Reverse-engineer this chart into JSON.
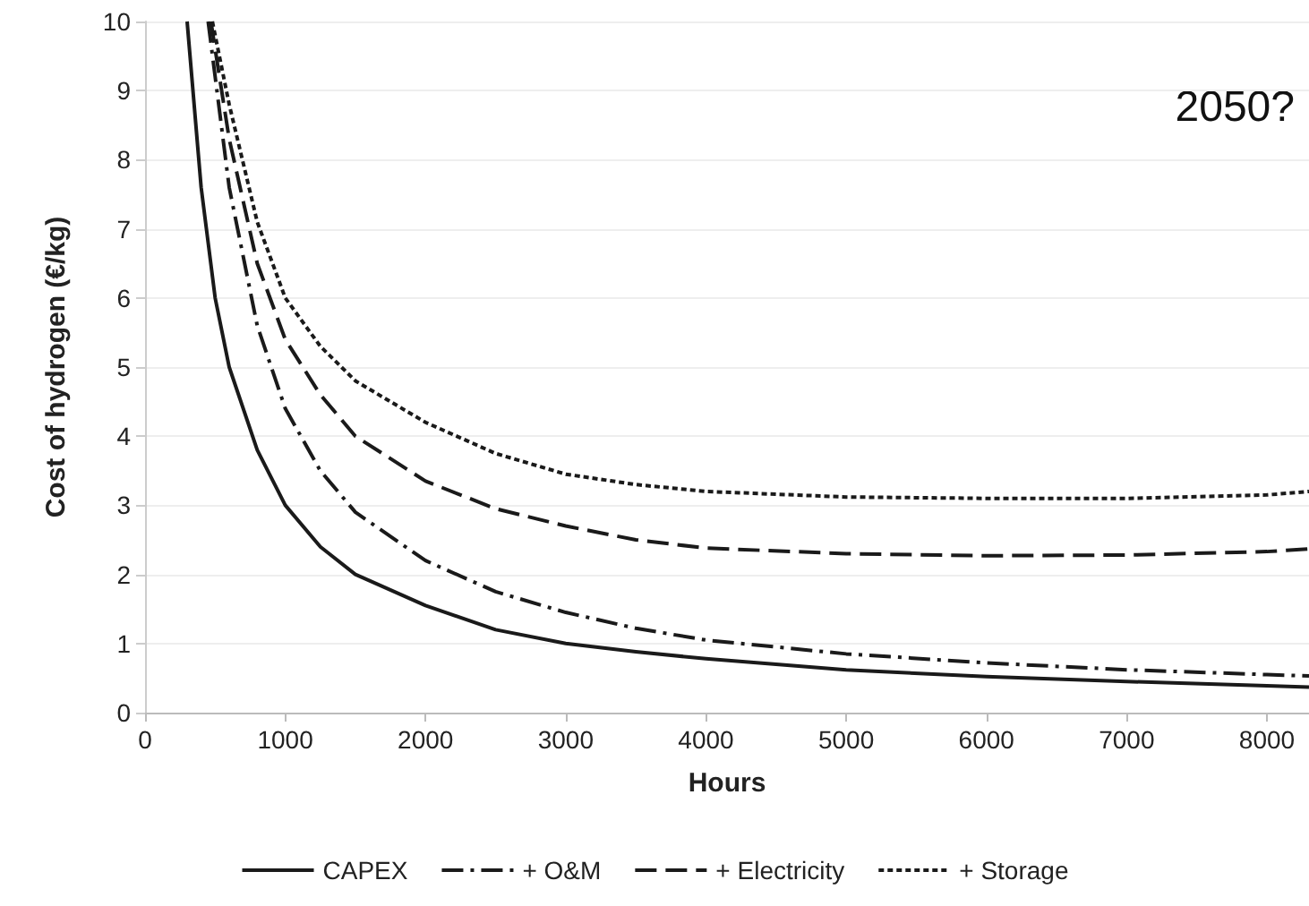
{
  "chart_data": {
    "type": "line",
    "xlabel": "Hours",
    "ylabel": "Cost of hydrogen (€/kg)",
    "annotations": [
      "2050?"
    ],
    "xlim": [
      0,
      8300
    ],
    "xticks": [
      0,
      1000,
      2000,
      3000,
      4000,
      5000,
      6000,
      7000,
      8000
    ],
    "ylim": [
      0,
      10
    ],
    "yticks": [
      0,
      1,
      2,
      3,
      4,
      5,
      6,
      7,
      8,
      9,
      10
    ],
    "grid": "y",
    "legend": "bottom",
    "marker": "none",
    "series": [
      {
        "name": "CAPEX",
        "color": "#1a1a1a",
        "line_style": "solid",
        "x": [
          300,
          400,
          500,
          600,
          800,
          1000,
          1250,
          1500,
          2000,
          2500,
          3000,
          3500,
          4000,
          5000,
          6000,
          7000,
          8000,
          8300
        ],
        "values": [
          10,
          7.6,
          6.0,
          5.0,
          3.8,
          3.0,
          2.4,
          2.0,
          1.55,
          1.2,
          1.0,
          0.88,
          0.78,
          0.62,
          0.52,
          0.45,
          0.39,
          0.37
        ]
      },
      {
        "name": "+ O&M",
        "color": "#1a1a1a",
        "line_style": "dashdot",
        "x": [
          450,
          500,
          600,
          800,
          1000,
          1250,
          1500,
          2000,
          2500,
          3000,
          3500,
          4000,
          5000,
          6000,
          7000,
          8000,
          8300
        ],
        "values": [
          10,
          9.2,
          7.6,
          5.6,
          4.4,
          3.5,
          2.9,
          2.2,
          1.75,
          1.45,
          1.22,
          1.05,
          0.85,
          0.72,
          0.62,
          0.55,
          0.53
        ]
      },
      {
        "name": "+ Electricity",
        "color": "#1a1a1a",
        "line_style": "dashed",
        "x": [
          470,
          500,
          600,
          800,
          1000,
          1250,
          1500,
          2000,
          2500,
          3000,
          3500,
          4000,
          5000,
          6000,
          7000,
          8000,
          8300
        ],
        "values": [
          10,
          9.6,
          8.3,
          6.5,
          5.4,
          4.6,
          4.0,
          3.35,
          2.95,
          2.7,
          2.5,
          2.38,
          2.3,
          2.27,
          2.28,
          2.33,
          2.37
        ]
      },
      {
        "name": "+ Storage",
        "color": "#1a1a1a",
        "line_style": "dotted",
        "x": [
          480,
          500,
          600,
          800,
          1000,
          1250,
          1500,
          2000,
          2500,
          3000,
          3500,
          4000,
          5000,
          6000,
          7000,
          8000,
          8300
        ],
        "values": [
          10,
          9.8,
          8.8,
          7.1,
          6.0,
          5.3,
          4.8,
          4.2,
          3.75,
          3.45,
          3.3,
          3.2,
          3.12,
          3.1,
          3.1,
          3.15,
          3.2
        ]
      }
    ]
  }
}
